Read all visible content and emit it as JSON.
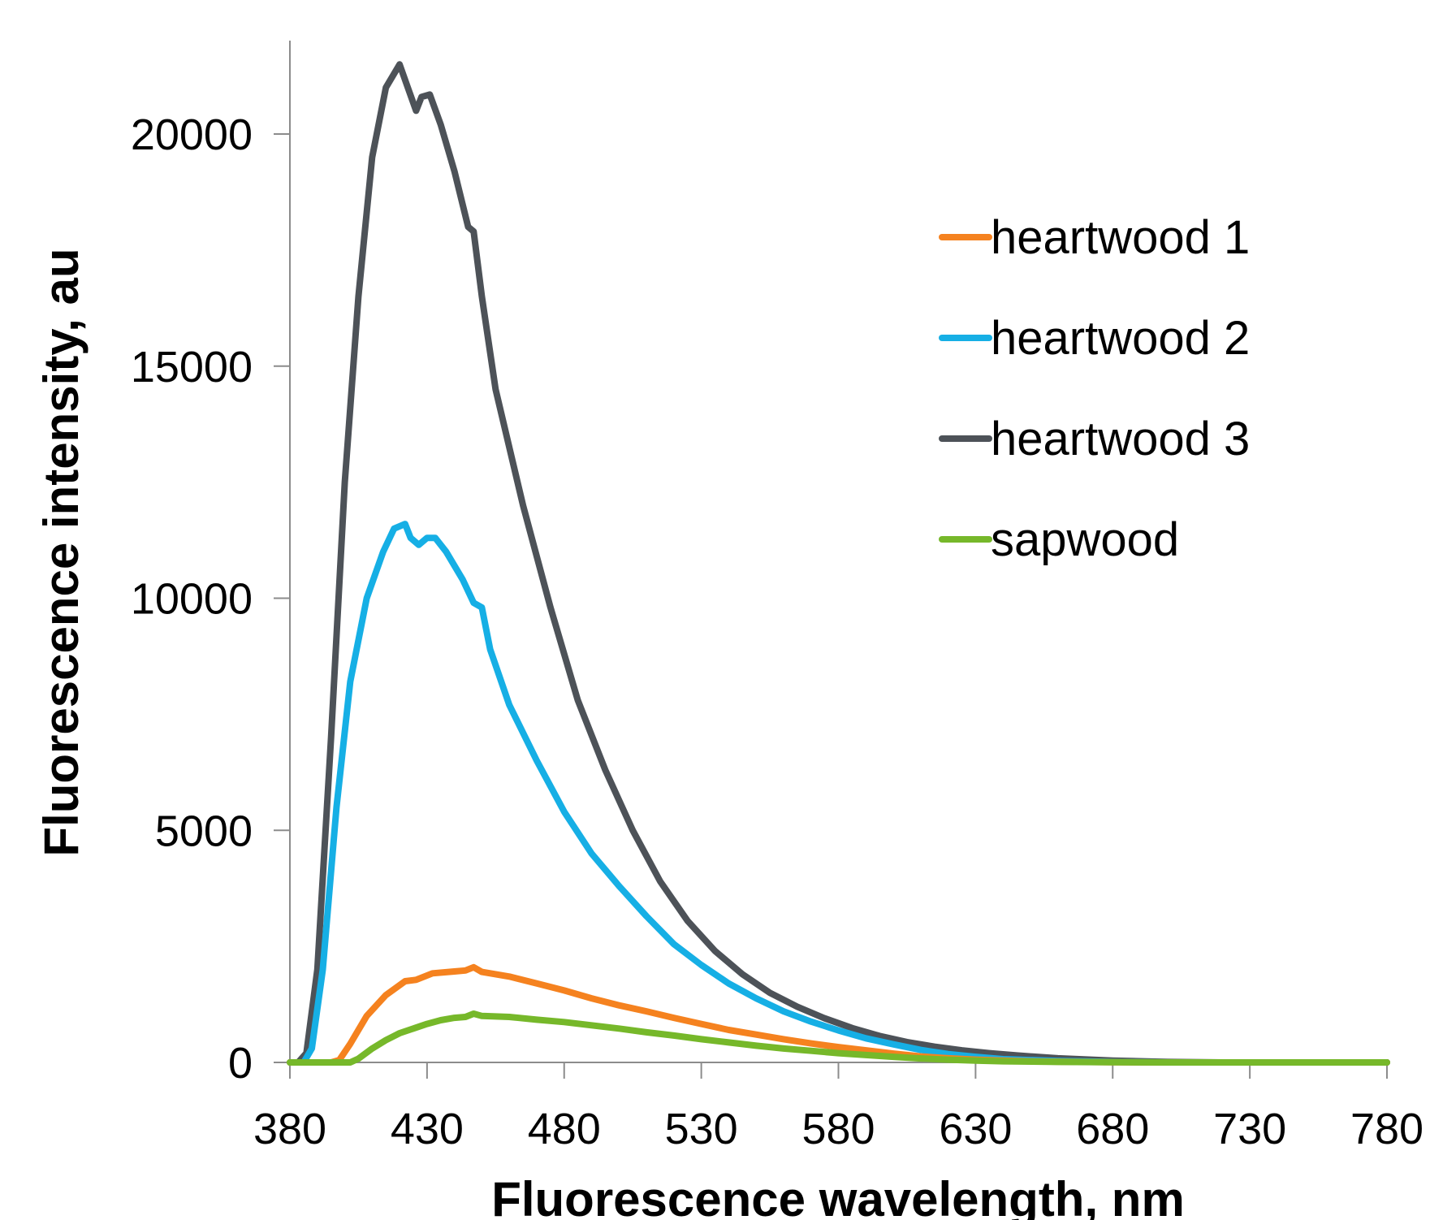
{
  "chart_data": {
    "type": "line",
    "title": "",
    "xlabel": "Fluorescence wavelength, nm",
    "ylabel": "Fluorescence intensity, au",
    "xlim": [
      380,
      780
    ],
    "ylim": [
      0,
      22000
    ],
    "xticks": [
      380,
      430,
      480,
      530,
      580,
      630,
      680,
      730,
      780
    ],
    "xtick_labels": [
      "380",
      "430",
      "480",
      "530",
      "580",
      "630",
      "680",
      "730",
      "780"
    ],
    "yticks": [
      0,
      5000,
      10000,
      15000,
      20000
    ],
    "ytick_labels": [
      "0",
      "5000",
      "10000",
      "15000",
      "20000"
    ],
    "grid": false,
    "legend_position": "top-right",
    "series": [
      {
        "name": "heartwood 1",
        "color": "#f5821f",
        "x": [
          380,
          395,
          398,
          402,
          408,
          415,
          422,
          426,
          432,
          440,
          444,
          447,
          450,
          460,
          470,
          480,
          490,
          500,
          510,
          520,
          530,
          540,
          550,
          560,
          570,
          580,
          590,
          600,
          610,
          620,
          630,
          640,
          650,
          660,
          680,
          700,
          720,
          740,
          760,
          780
        ],
        "y": [
          0,
          0,
          50,
          400,
          1000,
          1450,
          1750,
          1780,
          1920,
          1960,
          1980,
          2050,
          1950,
          1850,
          1700,
          1550,
          1380,
          1230,
          1100,
          960,
          830,
          700,
          600,
          500,
          410,
          330,
          260,
          190,
          130,
          90,
          60,
          40,
          25,
          15,
          5,
          0,
          0,
          0,
          0,
          0
        ]
      },
      {
        "name": "heartwood 2",
        "color": "#16afe5",
        "x": [
          380,
          385,
          388,
          392,
          397,
          402,
          408,
          414,
          418,
          422,
          424,
          427,
          430,
          433,
          437,
          443,
          447,
          450,
          453,
          460,
          470,
          480,
          490,
          500,
          510,
          520,
          530,
          540,
          550,
          560,
          570,
          580,
          590,
          600,
          610,
          620,
          630,
          640,
          660,
          680,
          700,
          720,
          740,
          760,
          780
        ],
        "y": [
          0,
          0,
          300,
          2000,
          5500,
          8200,
          10000,
          11000,
          11500,
          11600,
          11300,
          11150,
          11300,
          11300,
          11000,
          10400,
          9900,
          9800,
          8900,
          7700,
          6500,
          5400,
          4500,
          3800,
          3150,
          2550,
          2100,
          1700,
          1380,
          1100,
          880,
          690,
          520,
          390,
          270,
          180,
          120,
          70,
          30,
          10,
          0,
          0,
          0,
          0,
          0
        ]
      },
      {
        "name": "heartwood 3",
        "color": "#4d5258",
        "x": [
          380,
          383,
          386,
          390,
          395,
          400,
          405,
          410,
          415,
          420,
          423,
          426,
          428,
          431,
          435,
          440,
          445,
          447,
          450,
          455,
          465,
          475,
          485,
          495,
          505,
          515,
          525,
          535,
          545,
          555,
          565,
          575,
          585,
          595,
          605,
          615,
          625,
          635,
          645,
          660,
          680,
          700,
          720,
          740,
          760,
          780
        ],
        "y": [
          0,
          0,
          200,
          2000,
          7000,
          12500,
          16500,
          19500,
          21000,
          21500,
          21000,
          20500,
          20800,
          20850,
          20200,
          19200,
          18000,
          17900,
          16500,
          14500,
          12000,
          9800,
          7800,
          6300,
          5000,
          3900,
          3050,
          2400,
          1900,
          1500,
          1200,
          950,
          740,
          570,
          440,
          340,
          260,
          200,
          150,
          90,
          40,
          10,
          0,
          0,
          0,
          0
        ]
      },
      {
        "name": "sapwood",
        "color": "#76b82a",
        "x": [
          380,
          402,
          405,
          410,
          415,
          420,
          425,
          430,
          435,
          440,
          444,
          447,
          450,
          460,
          470,
          480,
          490,
          500,
          510,
          520,
          530,
          540,
          550,
          560,
          570,
          580,
          590,
          600,
          610,
          620,
          630,
          640,
          660,
          680,
          700,
          720,
          740,
          760,
          780
        ],
        "y": [
          0,
          0,
          80,
          300,
          480,
          630,
          730,
          830,
          910,
          960,
          980,
          1050,
          1000,
          980,
          920,
          870,
          800,
          730,
          650,
          580,
          500,
          430,
          360,
          300,
          250,
          200,
          160,
          120,
          85,
          60,
          40,
          25,
          10,
          5,
          0,
          0,
          0,
          0,
          0
        ]
      }
    ]
  }
}
